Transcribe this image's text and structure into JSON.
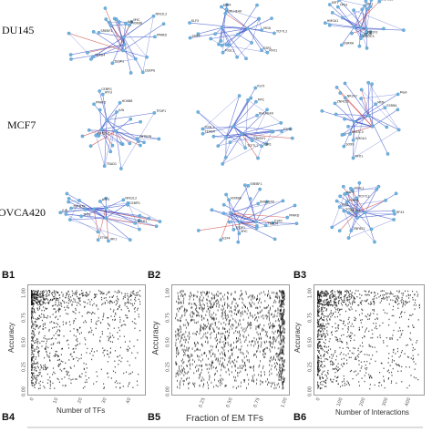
{
  "figure": {
    "row_labels": [
      "DU145",
      "MCF7",
      "OVCA420"
    ],
    "network_node_labels": [
      "CEBPG",
      "JUN",
      "NFE2L2",
      "TFDP1",
      "HOXB8",
      "PPARD",
      "MYC",
      "SREBF1",
      "TEAD4",
      "E2F4",
      "ESR1",
      "BHLHE40",
      "KLF5",
      "FOSL1",
      "TCF7L2",
      "RFX1",
      "SOX9",
      "MGA",
      "NR2F2",
      "ESRRA",
      "ZNF652",
      "NFATC3",
      "MITF",
      "HMGA1",
      "TP53",
      "IRF1",
      "ETV6",
      "ZBTB7B",
      "TEAD1",
      "ATF3"
    ],
    "panel_labels_top": [
      "B1",
      "B2",
      "B3"
    ],
    "panel_labels_bottom": [
      "B4",
      "B5",
      "B6"
    ],
    "accent": {
      "edge_blue": "#3e55c9",
      "edge_red": "#d04545",
      "node": "#6fb3e0"
    }
  },
  "panels": [
    {
      "id": "B1",
      "ylabel": "Accuracy",
      "xlabel": "Number of TFs",
      "yticks": [
        "0.00",
        "0.25",
        "0.50",
        "0.75",
        "1.00"
      ],
      "xticks": [
        "0",
        "10",
        "20",
        "30",
        "40"
      ],
      "xlim": [
        0,
        45
      ],
      "ylim": [
        0,
        1
      ]
    },
    {
      "id": "B2",
      "ylabel": "Accuracy",
      "xlabel": "Fraction of EM TFs",
      "yticks": [
        "0.00",
        "0.25",
        "0.50",
        "0.75",
        "1.00"
      ],
      "xticks": [
        "0.25",
        "0.50",
        "0.75",
        "1.00"
      ],
      "xlim": [
        0,
        1
      ],
      "ylim": [
        0,
        1
      ]
    },
    {
      "id": "B3",
      "ylabel": "Accuracy",
      "xlabel": "Number of Interactions",
      "yticks": [
        "0.00",
        "0.25",
        "0.50",
        "0.75",
        "1.00"
      ],
      "xticks": [
        "0",
        "100",
        "200",
        "300",
        "400"
      ],
      "xlim": [
        0,
        450
      ],
      "ylim": [
        0,
        1
      ]
    }
  ]
}
